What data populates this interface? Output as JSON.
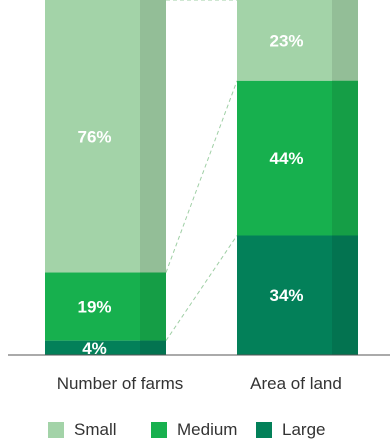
{
  "chart_data": {
    "type": "bar",
    "stacked": true,
    "percent": true,
    "categories": [
      "Number of farms",
      "Area of land"
    ],
    "series": [
      {
        "name": "Small",
        "values": [
          76,
          23
        ],
        "labels": [
          "76%",
          "23%"
        ],
        "color": "#a3d3a8"
      },
      {
        "name": "Medium",
        "values": [
          19,
          44
        ],
        "labels": [
          "19%",
          "44%"
        ],
        "color": "#17b04e"
      },
      {
        "name": "Large",
        "values": [
          4,
          34
        ],
        "labels": [
          "4%",
          "34%"
        ],
        "color": "#038059"
      }
    ],
    "ylim": [
      0,
      100
    ],
    "connector_lines": "dashed",
    "legend_position": "bottom",
    "grid": false
  }
}
